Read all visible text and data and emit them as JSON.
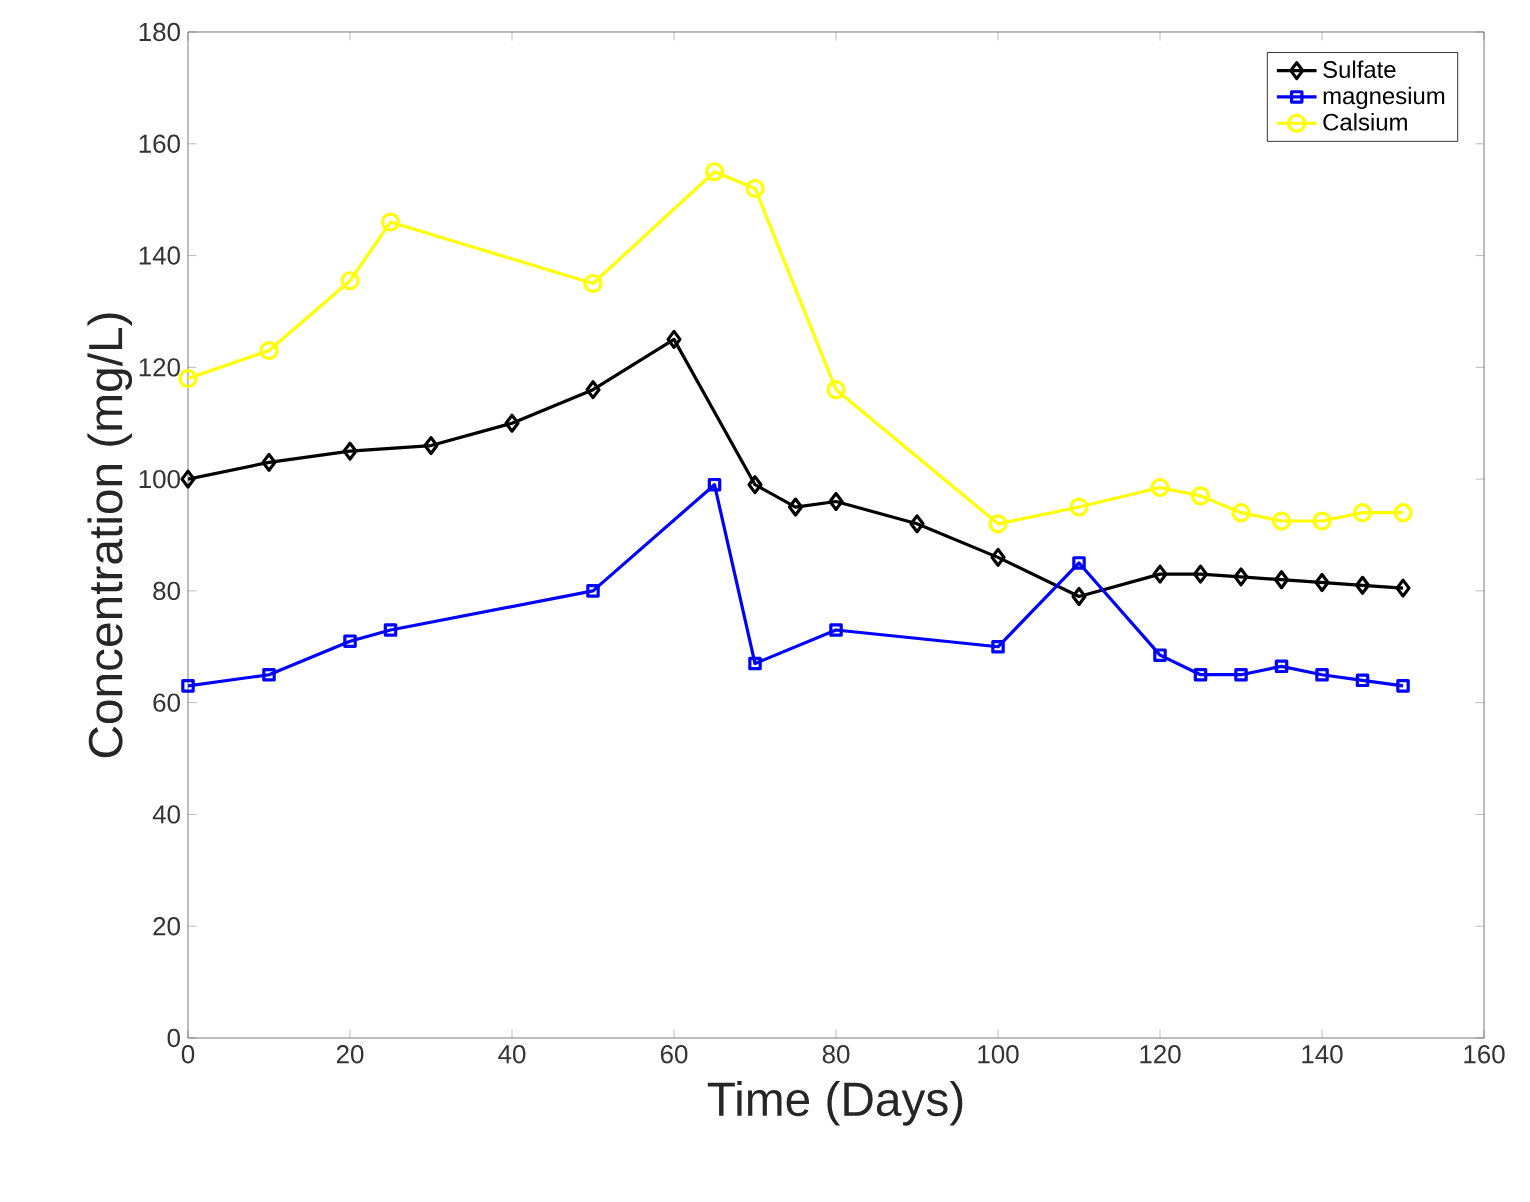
{
  "chart_data": {
    "type": "line",
    "xlabel": "Time (Days)",
    "ylabel": "Concentration (mg/L)",
    "xlim": [
      0,
      160
    ],
    "ylim": [
      0,
      180
    ],
    "xticks": [
      0,
      20,
      40,
      60,
      80,
      100,
      120,
      140,
      160
    ],
    "yticks": [
      0,
      20,
      40,
      60,
      80,
      100,
      120,
      140,
      160,
      180
    ],
    "grid": false,
    "legend": "top right",
    "series": [
      {
        "name": "Sulfate",
        "color": "#000000",
        "marker": "diamond",
        "x": [
          0,
          10,
          20,
          30,
          40,
          50,
          60,
          70,
          75,
          80,
          90,
          100,
          110,
          120,
          125,
          130,
          135,
          140,
          145,
          150
        ],
        "values": [
          100,
          103,
          105,
          106,
          110,
          116,
          125,
          99,
          95,
          96,
          92,
          86,
          79,
          83,
          83,
          82.5,
          82,
          81.5,
          81,
          80.5
        ]
      },
      {
        "name": "magnesium",
        "color": "#0000ff",
        "marker": "square",
        "x": [
          0,
          10,
          20,
          25,
          50,
          65,
          70,
          80,
          100,
          110,
          120,
          125,
          130,
          135,
          140,
          145,
          150
        ],
        "values": [
          63,
          65,
          71,
          73,
          80,
          99,
          67,
          73,
          70,
          85,
          68.5,
          65,
          65,
          66.5,
          65,
          64,
          63
        ]
      },
      {
        "name": "Calsium",
        "color": "#ffff00",
        "marker": "circle",
        "x": [
          0,
          10,
          20,
          25,
          50,
          65,
          70,
          80,
          100,
          110,
          120,
          125,
          130,
          135,
          140,
          145,
          150
        ],
        "values": [
          118,
          123,
          135.5,
          146,
          135,
          155,
          152,
          116,
          92,
          95,
          98.5,
          97,
          94,
          92.5,
          92.5,
          94,
          94
        ]
      }
    ]
  }
}
